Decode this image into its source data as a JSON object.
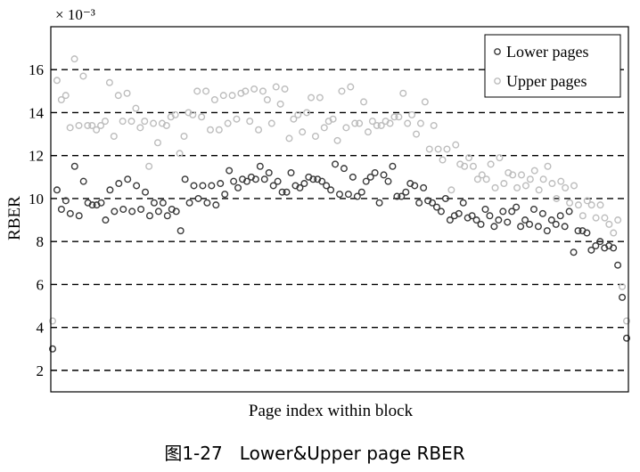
{
  "caption": "图1-27   Lower&Upper page RBER",
  "chart_data": {
    "type": "scatter",
    "xlabel": "Page index within block",
    "ylabel": "RBER",
    "y_multiplier": "× 10⁻³",
    "ylim": [
      1,
      18
    ],
    "yticks": [
      2,
      4,
      6,
      8,
      10,
      12,
      14,
      16
    ],
    "xtick_labels": false,
    "grid": "horizontal dashed lines at y ticks",
    "legend_position": "top-right",
    "colors": {
      "lower": "#3a3a3a",
      "upper": "#bdbdbd",
      "grid": "#000000"
    },
    "series": [
      {
        "name": "Lower pages",
        "values": [
          3.0,
          10.4,
          9.5,
          9.9,
          9.3,
          11.5,
          9.2,
          10.8,
          9.8,
          9.7,
          9.7,
          9.8,
          9.0,
          10.4,
          9.4,
          10.7,
          9.5,
          10.9,
          9.4,
          10.6,
          9.5,
          10.3,
          9.2,
          9.8,
          9.4,
          9.8,
          9.2,
          9.5,
          9.4,
          8.5,
          10.9,
          9.8,
          10.6,
          10.0,
          10.6,
          9.8,
          10.6,
          9.7,
          10.7,
          10.2,
          11.3,
          10.8,
          10.5,
          10.9,
          10.8,
          11.0,
          10.9,
          11.5,
          10.9,
          11.2,
          10.6,
          10.8,
          10.3,
          10.3,
          11.2,
          10.6,
          10.5,
          10.7,
          11.0,
          10.9,
          10.9,
          10.8,
          10.6,
          10.4,
          11.6,
          10.2,
          11.4,
          10.2,
          11.0,
          10.1,
          10.3,
          10.8,
          11.0,
          11.2,
          9.8,
          11.1,
          10.8,
          11.5,
          10.1,
          10.1,
          10.3,
          10.7,
          10.6,
          9.8,
          10.5,
          9.9,
          9.8,
          9.6,
          9.4,
          10.0,
          9.0,
          9.2,
          9.3,
          9.8,
          9.1,
          9.2,
          9.0,
          8.8,
          9.5,
          9.2,
          8.7,
          9.0,
          9.4,
          8.9,
          9.4,
          9.6,
          8.7,
          9.0,
          8.8,
          9.5,
          8.7,
          9.3,
          8.5,
          9.0,
          8.8,
          9.2,
          8.7,
          9.4,
          7.5,
          8.5,
          8.5,
          8.4,
          7.6,
          7.8,
          8.0,
          7.7,
          7.8,
          7.7,
          6.9,
          5.4,
          3.5
        ]
      },
      {
        "name": "Upper pages",
        "values": [
          4.3,
          15.5,
          14.6,
          14.8,
          13.3,
          16.5,
          13.4,
          15.7,
          13.4,
          13.4,
          13.2,
          13.4,
          13.6,
          15.4,
          12.9,
          14.8,
          13.6,
          14.9,
          13.6,
          14.2,
          13.3,
          13.6,
          11.5,
          13.5,
          12.6,
          13.5,
          13.4,
          13.8,
          13.9,
          12.1,
          12.9,
          14.0,
          13.9,
          15.0,
          13.8,
          15.0,
          13.2,
          14.6,
          13.2,
          14.8,
          13.5,
          14.8,
          13.7,
          14.9,
          15.0,
          13.6,
          15.1,
          13.2,
          15.0,
          14.6,
          13.5,
          15.2,
          14.4,
          15.1,
          12.8,
          13.7,
          13.9,
          13.1,
          14.0,
          14.7,
          12.9,
          14.7,
          13.3,
          13.6,
          13.7,
          12.7,
          15.0,
          13.3,
          15.2,
          13.5,
          13.5,
          14.5,
          13.1,
          13.6,
          13.4,
          13.4,
          13.6,
          13.5,
          13.8,
          13.8,
          14.9,
          13.5,
          13.9,
          13.0,
          13.5,
          14.5,
          12.3,
          13.4,
          12.3,
          11.8,
          12.3,
          10.4,
          12.5,
          11.6,
          11.5,
          11.9,
          11.5,
          10.9,
          11.1,
          10.9,
          11.6,
          10.5,
          11.9,
          10.7,
          11.2,
          11.1,
          10.5,
          11.1,
          10.6,
          10.9,
          11.3,
          10.4,
          10.9,
          11.5,
          10.7,
          10.0,
          10.8,
          10.5,
          9.8,
          10.6,
          9.7,
          9.2,
          9.9,
          9.7,
          9.1,
          9.7,
          9.1,
          8.8,
          8.4,
          9.0,
          5.9,
          4.3
        ]
      }
    ]
  }
}
